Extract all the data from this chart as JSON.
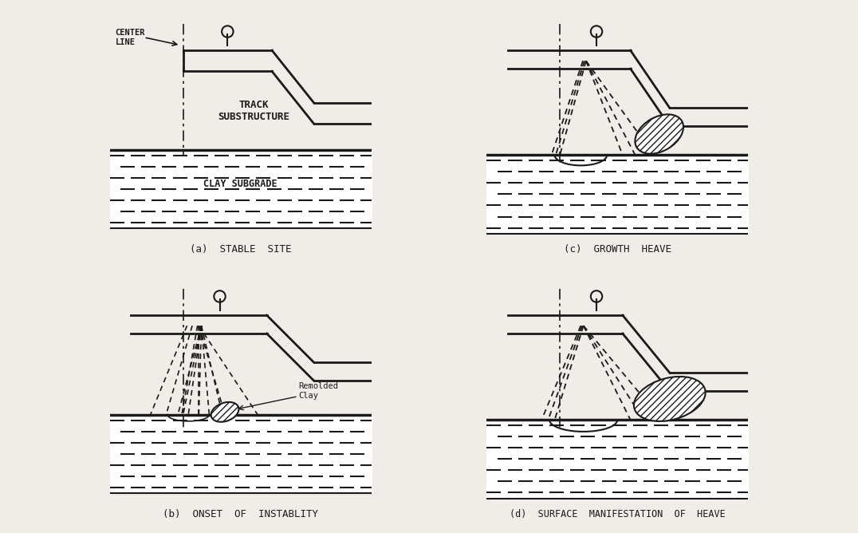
{
  "bg_color": "#f0ede8",
  "line_color": "#1a1a1a",
  "hatch_color": "#1a1a1a",
  "panel_labels": [
    "(a)  STABLE  SITE",
    "(b)  ONSET  OF  INSTABLITY",
    "(c)  GROWTH  HEAVE",
    "(d)  SURFACE  MANIFESTATION  OF  HEAVE"
  ],
  "text_a": [
    "TRACK\nSUBSTRUCTURE",
    "CLAY SUBGRADE",
    "CENTER\nLINE"
  ],
  "remolded_label": "Remolded\nClay"
}
